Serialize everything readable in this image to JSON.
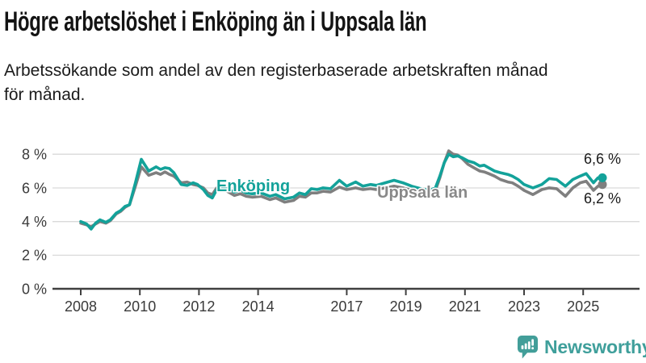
{
  "chart_data": {
    "type": "line",
    "title": "Högre arbetslöshet i Enköping än i Uppsala län",
    "subtitle": "Arbetssökande som andel av den registerbaserade arbetskraften månad\nför månad.",
    "unit": "%",
    "xlabel": "",
    "ylabel": "",
    "grid": "horizontal-only",
    "legend": "inline-labels",
    "xlim": [
      2007.0,
      2026.9
    ],
    "ylim": [
      0,
      8.6
    ],
    "x_ticks": [
      2008,
      2010,
      2012,
      2014,
      2017,
      2019,
      2021,
      2023,
      2025
    ],
    "x_tick_labels": [
      "2008",
      "2010",
      "2012",
      "2014",
      "2017",
      "2019",
      "2021",
      "2023",
      "2025"
    ],
    "y_ticks": [
      8,
      6,
      4,
      2,
      0
    ],
    "y_tick_labels": [
      "8 %",
      "6 %",
      "4 %",
      "2 %",
      "0 %"
    ],
    "series": [
      {
        "name": "Uppsala län",
        "color": "#7f7f7f",
        "label_color": "#898989",
        "end_label": "6,2 %",
        "end_value": 6.2,
        "points": [
          [
            2008.0,
            3.9
          ],
          [
            2008.2,
            3.8
          ],
          [
            2008.35,
            3.7
          ],
          [
            2008.5,
            3.85
          ],
          [
            2008.65,
            4.0
          ],
          [
            2008.85,
            3.9
          ],
          [
            2009.0,
            4.05
          ],
          [
            2009.2,
            4.45
          ],
          [
            2009.35,
            4.6
          ],
          [
            2009.5,
            4.85
          ],
          [
            2009.65,
            5.0
          ],
          [
            2009.85,
            6.1
          ],
          [
            2010.05,
            7.25
          ],
          [
            2010.3,
            6.75
          ],
          [
            2010.55,
            6.9
          ],
          [
            2010.7,
            6.8
          ],
          [
            2010.85,
            6.95
          ],
          [
            2011.0,
            6.8
          ],
          [
            2011.15,
            6.7
          ],
          [
            2011.4,
            6.3
          ],
          [
            2011.6,
            6.35
          ],
          [
            2011.8,
            6.2
          ],
          [
            2011.95,
            6.15
          ],
          [
            2012.15,
            6.0
          ],
          [
            2012.3,
            5.7
          ],
          [
            2012.45,
            5.6
          ],
          [
            2012.6,
            6.0
          ],
          [
            2012.8,
            5.95
          ],
          [
            2013.0,
            5.75
          ],
          [
            2013.2,
            5.55
          ],
          [
            2013.4,
            5.65
          ],
          [
            2013.6,
            5.5
          ],
          [
            2013.8,
            5.45
          ],
          [
            2014.1,
            5.5
          ],
          [
            2014.4,
            5.3
          ],
          [
            2014.6,
            5.4
          ],
          [
            2014.9,
            5.15
          ],
          [
            2015.2,
            5.25
          ],
          [
            2015.4,
            5.5
          ],
          [
            2015.6,
            5.45
          ],
          [
            2015.8,
            5.7
          ],
          [
            2016.0,
            5.7
          ],
          [
            2016.2,
            5.8
          ],
          [
            2016.45,
            5.75
          ],
          [
            2016.75,
            6.05
          ],
          [
            2017.0,
            5.9
          ],
          [
            2017.3,
            6.0
          ],
          [
            2017.55,
            5.9
          ],
          [
            2017.8,
            5.95
          ],
          [
            2018.0,
            5.9
          ],
          [
            2018.3,
            6.0
          ],
          [
            2018.6,
            6.1
          ],
          [
            2018.9,
            6.0
          ],
          [
            2019.2,
            5.85
          ],
          [
            2019.5,
            5.75
          ],
          [
            2019.8,
            5.7
          ],
          [
            2020.0,
            5.85
          ],
          [
            2020.15,
            6.6
          ],
          [
            2020.3,
            7.5
          ],
          [
            2020.45,
            8.2
          ],
          [
            2020.6,
            8.0
          ],
          [
            2020.75,
            7.95
          ],
          [
            2020.9,
            7.75
          ],
          [
            2021.1,
            7.4
          ],
          [
            2021.3,
            7.2
          ],
          [
            2021.5,
            7.0
          ],
          [
            2021.65,
            6.95
          ],
          [
            2021.8,
            6.85
          ],
          [
            2022.0,
            6.7
          ],
          [
            2022.2,
            6.5
          ],
          [
            2022.45,
            6.35
          ],
          [
            2022.6,
            6.3
          ],
          [
            2022.8,
            6.1
          ],
          [
            2023.0,
            5.85
          ],
          [
            2023.3,
            5.6
          ],
          [
            2023.6,
            5.9
          ],
          [
            2023.85,
            6.0
          ],
          [
            2024.1,
            5.95
          ],
          [
            2024.4,
            5.5
          ],
          [
            2024.65,
            6.0
          ],
          [
            2024.9,
            6.3
          ],
          [
            2025.1,
            6.4
          ],
          [
            2025.35,
            5.85
          ],
          [
            2025.5,
            6.1
          ],
          [
            2025.65,
            6.2
          ]
        ]
      },
      {
        "name": "Enköping",
        "color": "#13a29a",
        "label_color": "#13a29a",
        "end_label": "6,6 %",
        "end_value": 6.6,
        "points": [
          [
            2008.0,
            4.0
          ],
          [
            2008.2,
            3.85
          ],
          [
            2008.35,
            3.55
          ],
          [
            2008.5,
            3.9
          ],
          [
            2008.65,
            4.1
          ],
          [
            2008.85,
            3.95
          ],
          [
            2009.0,
            4.1
          ],
          [
            2009.2,
            4.5
          ],
          [
            2009.35,
            4.65
          ],
          [
            2009.5,
            4.9
          ],
          [
            2009.65,
            5.0
          ],
          [
            2009.85,
            6.3
          ],
          [
            2010.05,
            7.7
          ],
          [
            2010.3,
            7.0
          ],
          [
            2010.55,
            7.25
          ],
          [
            2010.7,
            7.1
          ],
          [
            2010.85,
            7.2
          ],
          [
            2011.0,
            7.15
          ],
          [
            2011.15,
            6.9
          ],
          [
            2011.4,
            6.2
          ],
          [
            2011.6,
            6.15
          ],
          [
            2011.8,
            6.3
          ],
          [
            2011.95,
            6.2
          ],
          [
            2012.15,
            5.9
          ],
          [
            2012.3,
            5.55
          ],
          [
            2012.45,
            5.4
          ],
          [
            2012.6,
            5.9
          ],
          [
            2012.8,
            6.1
          ],
          [
            2013.0,
            5.9
          ],
          [
            2013.2,
            5.75
          ],
          [
            2013.4,
            5.85
          ],
          [
            2013.6,
            5.7
          ],
          [
            2013.8,
            5.65
          ],
          [
            2014.1,
            5.7
          ],
          [
            2014.4,
            5.5
          ],
          [
            2014.6,
            5.6
          ],
          [
            2014.9,
            5.35
          ],
          [
            2015.2,
            5.45
          ],
          [
            2015.4,
            5.7
          ],
          [
            2015.6,
            5.6
          ],
          [
            2015.8,
            5.95
          ],
          [
            2016.0,
            5.9
          ],
          [
            2016.2,
            6.0
          ],
          [
            2016.45,
            5.95
          ],
          [
            2016.75,
            6.45
          ],
          [
            2017.0,
            6.1
          ],
          [
            2017.3,
            6.35
          ],
          [
            2017.55,
            6.1
          ],
          [
            2017.8,
            6.2
          ],
          [
            2018.0,
            6.15
          ],
          [
            2018.3,
            6.3
          ],
          [
            2018.6,
            6.45
          ],
          [
            2018.9,
            6.3
          ],
          [
            2019.2,
            6.1
          ],
          [
            2019.5,
            5.95
          ],
          [
            2019.8,
            5.85
          ],
          [
            2020.0,
            6.0
          ],
          [
            2020.15,
            6.7
          ],
          [
            2020.3,
            7.5
          ],
          [
            2020.45,
            8.0
          ],
          [
            2020.6,
            7.85
          ],
          [
            2020.75,
            7.9
          ],
          [
            2020.9,
            7.8
          ],
          [
            2021.1,
            7.6
          ],
          [
            2021.3,
            7.5
          ],
          [
            2021.5,
            7.3
          ],
          [
            2021.65,
            7.35
          ],
          [
            2021.8,
            7.2
          ],
          [
            2022.0,
            7.0
          ],
          [
            2022.2,
            6.9
          ],
          [
            2022.45,
            6.8
          ],
          [
            2022.6,
            6.7
          ],
          [
            2022.8,
            6.5
          ],
          [
            2023.0,
            6.2
          ],
          [
            2023.3,
            6.0
          ],
          [
            2023.6,
            6.2
          ],
          [
            2023.85,
            6.55
          ],
          [
            2024.1,
            6.5
          ],
          [
            2024.4,
            6.1
          ],
          [
            2024.65,
            6.5
          ],
          [
            2024.9,
            6.7
          ],
          [
            2025.1,
            6.85
          ],
          [
            2025.35,
            6.3
          ],
          [
            2025.5,
            6.6
          ],
          [
            2025.65,
            6.6
          ]
        ]
      }
    ]
  },
  "footer": {
    "brand": "Newsworthy",
    "brand_color": "#3f9f9b",
    "logo_icon": "bar-chart-speech-bubble"
  }
}
